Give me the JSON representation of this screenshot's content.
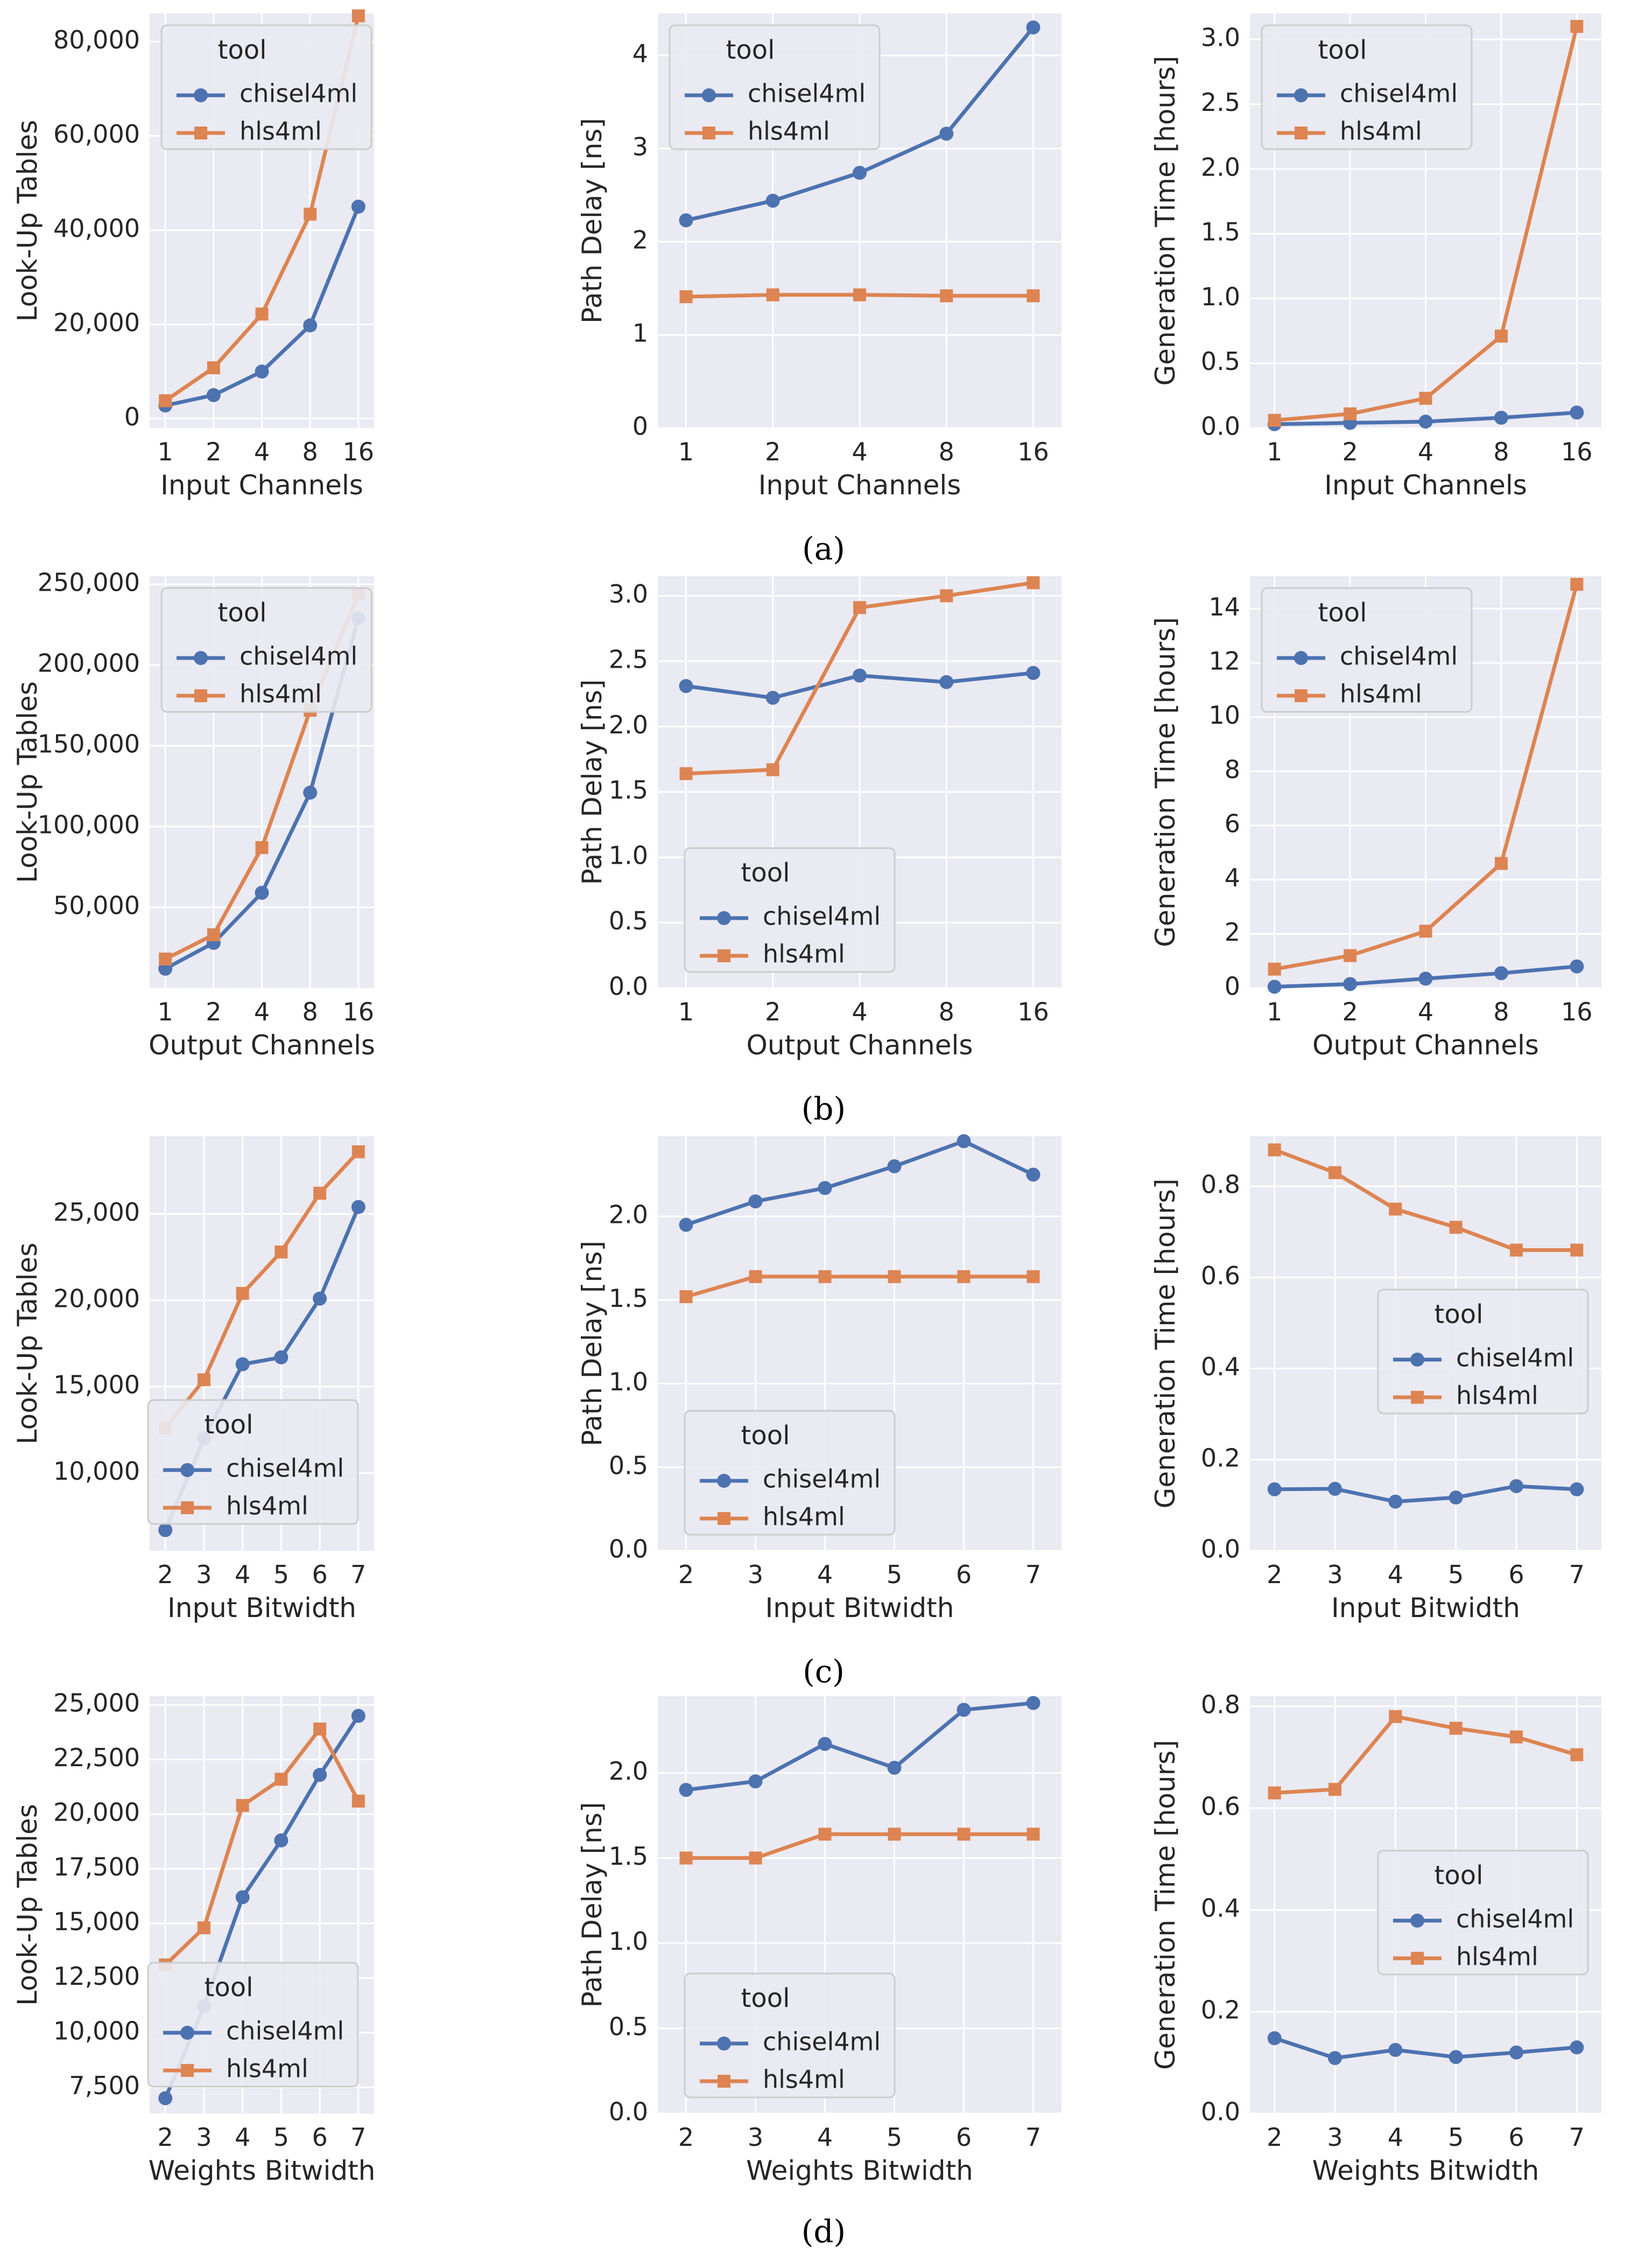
{
  "colors": {
    "chisel4ml": "#4c72b0",
    "hls4ml": "#dd8452",
    "plot_bg": "#eaeaf2",
    "grid": "#ffffff",
    "text": "#262626"
  },
  "captions": {
    "a": "(a)",
    "b": "(b)",
    "c": "(c)",
    "d": "(d)"
  },
  "chart_data": [
    {
      "id": "a1",
      "type": "line",
      "xlabel": "Input Channels",
      "ylabel": "Look-Up Tables",
      "categories": [
        "1",
        "2",
        "4",
        "8",
        "16"
      ],
      "ylim": [
        -2000,
        86000
      ],
      "yticks": [
        0,
        20000,
        40000,
        60000,
        80000
      ],
      "ytick_labels": [
        "0",
        "20,000",
        "40,000",
        "60,000",
        "80,000"
      ],
      "legend": {
        "title": "tool",
        "loc": "upper-left"
      },
      "series": [
        {
          "name": "chisel4ml",
          "values": [
            2800,
            5000,
            10000,
            19800,
            45000
          ]
        },
        {
          "name": "hls4ml",
          "values": [
            3800,
            10800,
            22200,
            43400,
            85500
          ]
        }
      ]
    },
    {
      "id": "a2",
      "type": "line",
      "xlabel": "Input Channels",
      "ylabel": "Path Delay [ns]",
      "categories": [
        "1",
        "2",
        "4",
        "8",
        "16"
      ],
      "ylim": [
        0,
        4.45
      ],
      "yticks": [
        0,
        1,
        2,
        3,
        4
      ],
      "ytick_labels": [
        "0",
        "1",
        "2",
        "3",
        "4"
      ],
      "legend": {
        "title": "tool",
        "loc": "upper-left"
      },
      "series": [
        {
          "name": "chisel4ml",
          "values": [
            2.23,
            2.44,
            2.74,
            3.16,
            4.3
          ]
        },
        {
          "name": "hls4ml",
          "values": [
            1.41,
            1.43,
            1.43,
            1.42,
            1.42
          ]
        }
      ]
    },
    {
      "id": "a3",
      "type": "line",
      "xlabel": "Input Channels",
      "ylabel": "Generation Time [hours]",
      "categories": [
        "1",
        "2",
        "4",
        "8",
        "16"
      ],
      "ylim": [
        0,
        3.2
      ],
      "yticks": [
        0,
        0.5,
        1,
        1.5,
        2,
        2.5,
        3
      ],
      "ytick_labels": [
        "0.0",
        "0.5",
        "1.0",
        "1.5",
        "2.0",
        "2.5",
        "3.0"
      ],
      "legend": {
        "title": "tool",
        "loc": "upper-left"
      },
      "series": [
        {
          "name": "chisel4ml",
          "values": [
            0.03,
            0.04,
            0.05,
            0.08,
            0.12
          ]
        },
        {
          "name": "hls4ml",
          "values": [
            0.06,
            0.11,
            0.23,
            0.71,
            3.1
          ]
        }
      ]
    },
    {
      "id": "b1",
      "type": "line",
      "xlabel": "Output Channels",
      "ylabel": "Look-Up Tables",
      "categories": [
        "1",
        "2",
        "4",
        "8",
        "16"
      ],
      "ylim": [
        0,
        255000
      ],
      "yticks": [
        50000,
        100000,
        150000,
        200000,
        250000
      ],
      "ytick_labels": [
        "50,000",
        "100,000",
        "150,000",
        "200,000",
        "250,000"
      ],
      "legend": {
        "title": "tool",
        "loc": "upper-left"
      },
      "series": [
        {
          "name": "chisel4ml",
          "values": [
            12000,
            28000,
            59000,
            121000,
            229000
          ]
        },
        {
          "name": "hls4ml",
          "values": [
            18000,
            33000,
            87000,
            172000,
            244000
          ]
        }
      ]
    },
    {
      "id": "b2",
      "type": "line",
      "xlabel": "Output Channels",
      "ylabel": "Path Delay [ns]",
      "categories": [
        "1",
        "2",
        "4",
        "8",
        "16"
      ],
      "ylim": [
        0,
        3.15
      ],
      "yticks": [
        0,
        0.5,
        1,
        1.5,
        2,
        2.5,
        3
      ],
      "ytick_labels": [
        "0.0",
        "0.5",
        "1.0",
        "1.5",
        "2.0",
        "2.5",
        "3.0"
      ],
      "legend": {
        "title": "tool",
        "loc": "lower-left"
      },
      "series": [
        {
          "name": "chisel4ml",
          "values": [
            2.31,
            2.22,
            2.39,
            2.34,
            2.41
          ]
        },
        {
          "name": "hls4ml",
          "values": [
            1.64,
            1.67,
            2.91,
            3.0,
            3.1
          ]
        }
      ]
    },
    {
      "id": "b3",
      "type": "line",
      "xlabel": "Output Channels",
      "ylabel": "Generation Time [hours]",
      "categories": [
        "1",
        "2",
        "4",
        "8",
        "16"
      ],
      "ylim": [
        0,
        15.2
      ],
      "yticks": [
        0,
        2,
        4,
        6,
        8,
        10,
        12,
        14
      ],
      "ytick_labels": [
        "0",
        "2",
        "4",
        "6",
        "8",
        "10",
        "12",
        "14"
      ],
      "legend": {
        "title": "tool",
        "loc": "upper-left"
      },
      "series": [
        {
          "name": "chisel4ml",
          "values": [
            0.05,
            0.15,
            0.35,
            0.55,
            0.8
          ]
        },
        {
          "name": "hls4ml",
          "values": [
            0.7,
            1.2,
            2.1,
            4.6,
            14.9
          ]
        }
      ]
    },
    {
      "id": "c1",
      "type": "line",
      "xlabel": "Input Bitwidth",
      "ylabel": "Look-Up Tables",
      "categories": [
        "2",
        "3",
        "4",
        "5",
        "6",
        "7"
      ],
      "ylim": [
        5500,
        29500
      ],
      "yticks": [
        10000,
        15000,
        20000,
        25000
      ],
      "ytick_labels": [
        "10,000",
        "15,000",
        "20,000",
        "25,000"
      ],
      "legend": {
        "title": "tool",
        "loc": "lower-right"
      },
      "series": [
        {
          "name": "chisel4ml",
          "values": [
            6700,
            12000,
            16300,
            16700,
            20100,
            25400
          ]
        },
        {
          "name": "hls4ml",
          "values": [
            12600,
            15400,
            20400,
            22800,
            26200,
            28600
          ]
        }
      ]
    },
    {
      "id": "c2",
      "type": "line",
      "xlabel": "Input Bitwidth",
      "ylabel": "Path Delay [ns]",
      "categories": [
        "2",
        "3",
        "4",
        "5",
        "6",
        "7"
      ],
      "ylim": [
        0,
        2.48
      ],
      "yticks": [
        0,
        0.5,
        1,
        1.5,
        2
      ],
      "ytick_labels": [
        "0.0",
        "0.5",
        "1.0",
        "1.5",
        "2.0"
      ],
      "legend": {
        "title": "tool",
        "loc": "lower-left"
      },
      "series": [
        {
          "name": "chisel4ml",
          "values": [
            1.95,
            2.09,
            2.17,
            2.3,
            2.45,
            2.25
          ]
        },
        {
          "name": "hls4ml",
          "values": [
            1.52,
            1.64,
            1.64,
            1.64,
            1.64,
            1.64
          ]
        }
      ]
    },
    {
      "id": "c3",
      "type": "line",
      "xlabel": "Input Bitwidth",
      "ylabel": "Generation Time [hours]",
      "categories": [
        "2",
        "3",
        "4",
        "5",
        "6",
        "7"
      ],
      "ylim": [
        0,
        0.91
      ],
      "yticks": [
        0,
        0.2,
        0.4,
        0.6,
        0.8
      ],
      "ytick_labels": [
        "0.0",
        "0.2",
        "0.4",
        "0.6",
        "0.8"
      ],
      "legend": {
        "title": "tool",
        "loc": "center-right"
      },
      "series": [
        {
          "name": "chisel4ml",
          "values": [
            0.135,
            0.136,
            0.108,
            0.117,
            0.142,
            0.135
          ]
        },
        {
          "name": "hls4ml",
          "values": [
            0.88,
            0.83,
            0.75,
            0.71,
            0.66,
            0.66
          ]
        }
      ]
    },
    {
      "id": "d1",
      "type": "line",
      "xlabel": "Weights Bitwidth",
      "ylabel": "Look-Up Tables",
      "categories": [
        "2",
        "3",
        "4",
        "5",
        "6",
        "7"
      ],
      "ylim": [
        6300,
        25400
      ],
      "yticks": [
        7500,
        10000,
        12500,
        15000,
        17500,
        20000,
        22500,
        25000
      ],
      "ytick_labels": [
        "7,500",
        "10,000",
        "12,500",
        "15,000",
        "17,500",
        "20,000",
        "22,500",
        "25,000"
      ],
      "legend": {
        "title": "tool",
        "loc": "lower-right"
      },
      "series": [
        {
          "name": "chisel4ml",
          "values": [
            7000,
            11200,
            16200,
            18800,
            21800,
            24500
          ]
        },
        {
          "name": "hls4ml",
          "values": [
            13100,
            14800,
            20400,
            21600,
            23900,
            20600
          ]
        }
      ]
    },
    {
      "id": "d2",
      "type": "line",
      "xlabel": "Weights Bitwidth",
      "ylabel": "Path Delay [ns]",
      "categories": [
        "2",
        "3",
        "4",
        "5",
        "6",
        "7"
      ],
      "ylim": [
        0,
        2.45
      ],
      "yticks": [
        0,
        0.5,
        1,
        1.5,
        2
      ],
      "ytick_labels": [
        "0.0",
        "0.5",
        "1.0",
        "1.5",
        "2.0"
      ],
      "legend": {
        "title": "tool",
        "loc": "lower-left"
      },
      "series": [
        {
          "name": "chisel4ml",
          "values": [
            1.9,
            1.95,
            2.17,
            2.03,
            2.37,
            2.41
          ]
        },
        {
          "name": "hls4ml",
          "values": [
            1.5,
            1.5,
            1.64,
            1.64,
            1.64,
            1.64
          ]
        }
      ]
    },
    {
      "id": "d3",
      "type": "line",
      "xlabel": "Weights Bitwidth",
      "ylabel": "Generation Time [hours]",
      "categories": [
        "2",
        "3",
        "4",
        "5",
        "6",
        "7"
      ],
      "ylim": [
        0,
        0.82
      ],
      "yticks": [
        0,
        0.2,
        0.4,
        0.6,
        0.8
      ],
      "ytick_labels": [
        "0.0",
        "0.2",
        "0.4",
        "0.6",
        "0.8"
      ],
      "legend": {
        "title": "tool",
        "loc": "center-right"
      },
      "series": [
        {
          "name": "chisel4ml",
          "values": [
            0.148,
            0.109,
            0.125,
            0.111,
            0.12,
            0.13
          ]
        },
        {
          "name": "hls4ml",
          "values": [
            0.63,
            0.637,
            0.78,
            0.757,
            0.74,
            0.705
          ]
        }
      ]
    }
  ]
}
